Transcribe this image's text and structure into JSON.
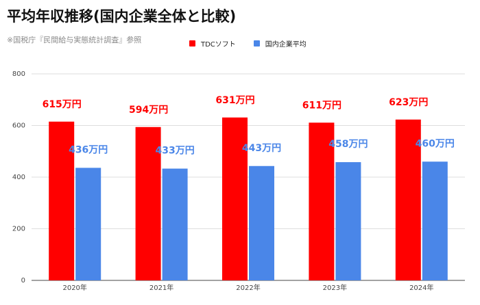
{
  "title": "平均年収推移(国内企業全体と比較)",
  "subtitle": "※国税庁『民間給与実態統計調査』参照",
  "chart_data": {
    "type": "bar",
    "categories": [
      "2020年",
      "2021年",
      "2022年",
      "2023年",
      "2024年"
    ],
    "series": [
      {
        "name": "TDCソフト",
        "values": [
          615,
          594,
          631,
          611,
          623
        ],
        "color": "#ff0000",
        "label_color": "#ff0000"
      },
      {
        "name": "国内企業平均",
        "values": [
          436,
          433,
          443,
          458,
          460
        ],
        "color": "#4a86e8",
        "label_color": "#4a86e8"
      }
    ],
    "data_labels": [
      [
        "615万円",
        "594万円",
        "631万円",
        "611万円",
        "623万円"
      ],
      [
        "436万円",
        "433万円",
        "443万円",
        "458万円",
        "460万円"
      ]
    ],
    "yticks": [
      0,
      200,
      400,
      600,
      800
    ],
    "ylim": [
      0,
      800
    ],
    "grid": true,
    "legend_position": "top"
  }
}
